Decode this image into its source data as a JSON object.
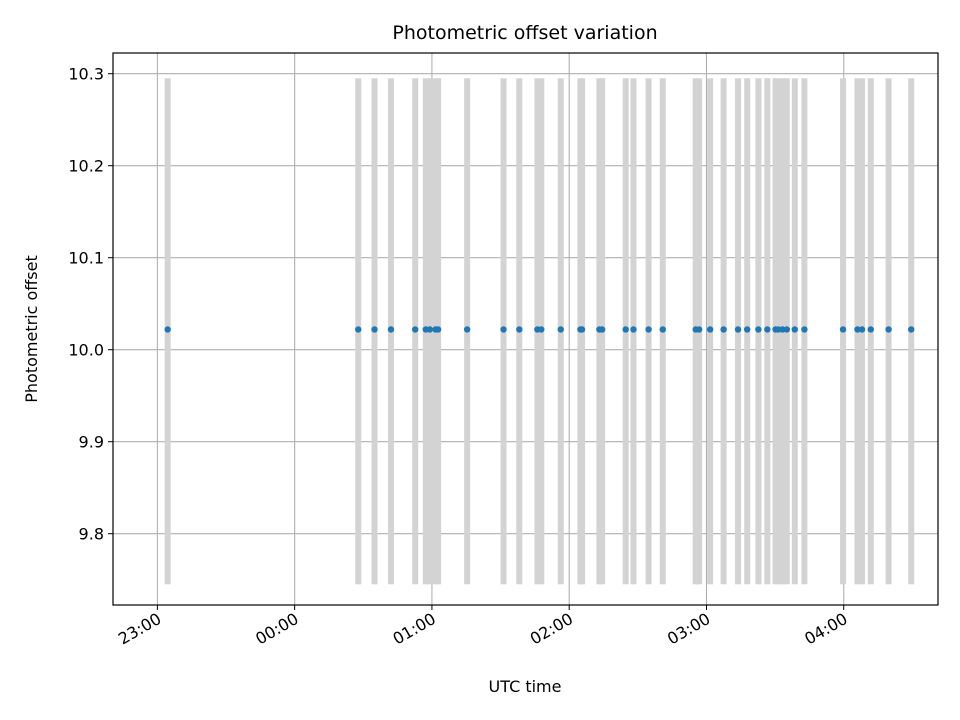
{
  "chart_data": {
    "type": "scatter",
    "title": "Photometric offset variation",
    "xlabel": "UTC time",
    "ylabel": "Photometric offset",
    "grid": true,
    "x_unit": "minutes from 23:00 UTC",
    "xlim": [
      -19.4,
      341.2
    ],
    "ylim": [
      9.7225,
      10.3225
    ],
    "x_ticks": [
      {
        "value": 0,
        "label": "23:00"
      },
      {
        "value": 60,
        "label": "00:00"
      },
      {
        "value": 120,
        "label": "01:00"
      },
      {
        "value": 180,
        "label": "02:00"
      },
      {
        "value": 240,
        "label": "03:00"
      },
      {
        "value": 300,
        "label": "04:00"
      }
    ],
    "y_ticks": [
      {
        "value": 9.8,
        "label": "9.8"
      },
      {
        "value": 9.9,
        "label": "9.9"
      },
      {
        "value": 10.0,
        "label": "10.0"
      },
      {
        "value": 10.1,
        "label": "10.1"
      },
      {
        "value": 10.2,
        "label": "10.2"
      },
      {
        "value": 10.3,
        "label": "10.3"
      }
    ],
    "bands": {
      "color": "#d3d3d3",
      "y_range": [
        9.745,
        10.295
      ],
      "x": [
        4.5,
        87.8,
        94.9,
        102.1,
        112.7,
        117.3,
        119.1,
        121.6,
        122.7,
        135.4,
        151.3,
        158.2,
        166.1,
        167.8,
        176.3,
        184.9,
        185.6,
        193.2,
        194.4,
        204.7,
        208.1,
        214.7,
        220.9,
        235.3,
        236.8,
        241.6,
        247.5,
        253.8,
        257.8,
        262.7,
        266.6,
        270.2,
        271.4,
        273.2,
        275.1,
        278.6,
        282.8,
        299.7,
        306.0,
        308.0,
        311.8,
        319.6,
        329.5
      ]
    },
    "series": [
      {
        "name": "Photometric offset",
        "color": "#1f77b4",
        "x": [
          4.5,
          87.8,
          94.9,
          102.1,
          112.7,
          117.3,
          119.1,
          121.6,
          122.7,
          135.4,
          151.3,
          158.2,
          166.1,
          167.8,
          176.3,
          184.9,
          185.6,
          193.2,
          194.4,
          204.7,
          208.1,
          214.7,
          220.9,
          235.3,
          236.8,
          241.6,
          247.5,
          253.8,
          257.8,
          262.7,
          266.6,
          270.2,
          271.4,
          273.2,
          275.1,
          278.6,
          282.8,
          299.7,
          306.0,
          308.0,
          311.8,
          319.6,
          329.5
        ],
        "y": [
          10.022,
          10.022,
          10.022,
          10.022,
          10.022,
          10.022,
          10.022,
          10.022,
          10.022,
          10.022,
          10.022,
          10.022,
          10.022,
          10.022,
          10.022,
          10.022,
          10.022,
          10.022,
          10.022,
          10.022,
          10.022,
          10.022,
          10.022,
          10.022,
          10.022,
          10.022,
          10.022,
          10.022,
          10.022,
          10.022,
          10.022,
          10.022,
          10.022,
          10.022,
          10.022,
          10.022,
          10.022,
          10.022,
          10.022,
          10.022,
          10.022,
          10.022,
          10.022
        ]
      }
    ]
  }
}
